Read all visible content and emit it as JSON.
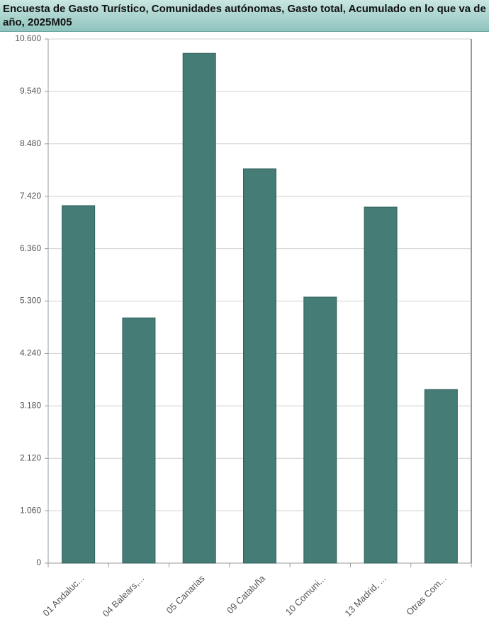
{
  "chart_data": {
    "type": "bar",
    "title": "Encuesta de Gasto Turístico, Comunidades autónomas, Gasto total, Acumulado en lo que va de año, 2025M05",
    "categories": [
      "01 Andaluc...",
      "04 Balears,...",
      "05 Canarias",
      "09 Cataluña",
      "10 Comuni...",
      "13 Madrid, ...",
      "Otras Com..."
    ],
    "values": [
      7230,
      4960,
      10310,
      7975,
      5380,
      7200,
      3510
    ],
    "color": "#457d76",
    "ylim": [
      0,
      10600
    ],
    "yticks": [
      0,
      {
        "value": 1060,
        "label": "1.060"
      },
      {
        "value": 2120,
        "label": "2.120"
      },
      {
        "value": 3180,
        "label": "3.180"
      },
      {
        "value": 4240,
        "label": "4.240"
      },
      {
        "value": 5300,
        "label": "5.300"
      },
      {
        "value": 6360,
        "label": "6.360"
      },
      {
        "value": 7420,
        "label": "7.420"
      },
      {
        "value": 8480,
        "label": "8.480"
      },
      {
        "value": 9540,
        "label": "9.540"
      },
      {
        "value": 10600,
        "label": "10.600"
      }
    ],
    "grid": true
  }
}
